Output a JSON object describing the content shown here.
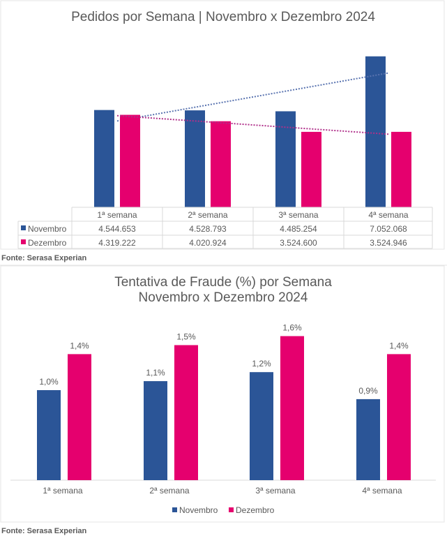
{
  "colors": {
    "novembro": "#2B5597",
    "dezembro": "#E5006E",
    "text": "#595959",
    "grid": "#D9D9D9"
  },
  "chart_data": [
    {
      "type": "bar",
      "title": "Pedidos por Semana | Novembro x Dezembro 2024",
      "categories": [
        "1ª semana",
        "2ª semana",
        "3ª semana",
        "4ª semana"
      ],
      "series": [
        {
          "name": "Novembro",
          "values": [
            4544653,
            4528793,
            4485254,
            7052068
          ],
          "labels": [
            "4.544.653",
            "4.528.793",
            "4.485.254",
            "7.052.068"
          ]
        },
        {
          "name": "Dezembro",
          "values": [
            4319222,
            4020924,
            3524600,
            3524946
          ],
          "labels": [
            "4.319.222",
            "4.020.924",
            "3.524.600",
            "3.524.946"
          ]
        }
      ],
      "trendlines": "linear, dotted, per series",
      "data_table": true,
      "ylim": [
        0,
        7500000
      ],
      "grid": false,
      "source": "Fonte: Serasa Experian"
    },
    {
      "type": "bar",
      "title": [
        "Tentativa de Fraude (%) por Semana",
        "Novembro x Dezembro 2024"
      ],
      "categories": [
        "1ª semana",
        "2ª semana",
        "3ª semana",
        "4ª semana"
      ],
      "series": [
        {
          "name": "Novembro",
          "values": [
            1.0,
            1.1,
            1.2,
            0.9
          ],
          "labels": [
            "1,0%",
            "1,1%",
            "1,2%",
            "0,9%"
          ]
        },
        {
          "name": "Dezembro",
          "values": [
            1.4,
            1.5,
            1.6,
            1.4
          ],
          "labels": [
            "1,4%",
            "1,5%",
            "1,6%",
            "1,4%"
          ]
        }
      ],
      "ylim": [
        0,
        1.8
      ],
      "legend": "bottom",
      "grid": false,
      "source": "Fonte: Serasa Experian"
    }
  ]
}
